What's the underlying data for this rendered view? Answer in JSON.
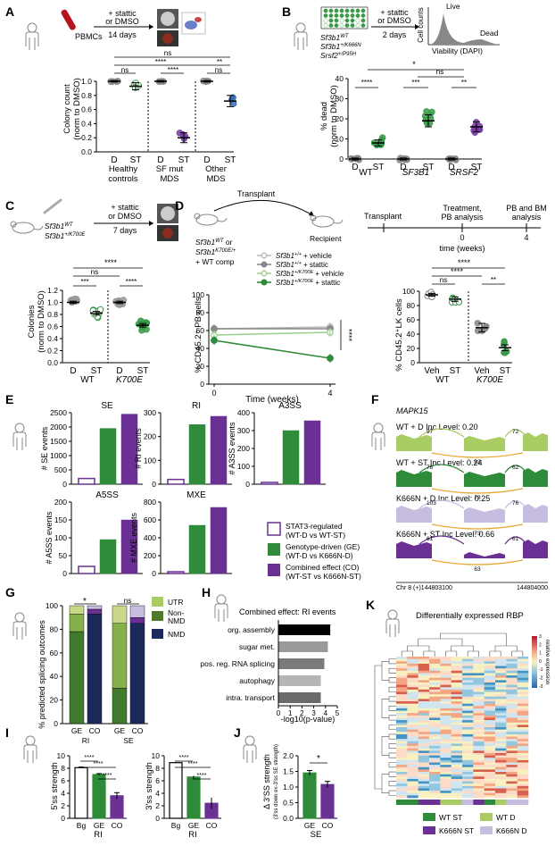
{
  "panels": {
    "A": {
      "letter": "A",
      "pbmcs": "PBMCs",
      "treat": "+ stattic",
      "treat2": "or DMSO",
      "duration": "14 days",
      "ylabel1": "Colony count",
      "ylabel2": "(norm to DMSO)",
      "groups": [
        "Healthy",
        "controls",
        "SF mut",
        "MDS",
        "Other",
        "MDS"
      ],
      "ticks": [
        "D",
        "ST",
        "D",
        "ST",
        "D",
        "ST"
      ],
      "sig": [
        "ns",
        "****",
        "****",
        "**",
        "ns",
        "ns"
      ]
    },
    "B": {
      "letter": "B",
      "geno1": "Sf3b1",
      "geno1sup": "WT",
      "geno2": "Sf3b1",
      "geno2sup": "+/K666N",
      "geno3": "Srsf2",
      "geno3sup": "+/P95H",
      "treat": "+ stattic",
      "treat2": "or DMSO",
      "duration": "2 days",
      "cellcounts": "Cell counts",
      "live": "Live",
      "dead": "Dead",
      "viab": "Viability (DAPI)",
      "ylabel1": "% dead",
      "ylabel2": "(norm to DMSO)",
      "groups": [
        "WT",
        "SF3B1",
        "SRSF2"
      ],
      "ticks": [
        "D",
        "ST",
        "D",
        "ST",
        "D",
        "ST"
      ],
      "sig": [
        "****",
        "***",
        "**",
        "*",
        "ns"
      ]
    },
    "C": {
      "letter": "C",
      "geno1": "Sf3b1",
      "geno1sup": "WT",
      "geno2": "Sf3b1",
      "geno2sup": "+/K700E",
      "treat": "+ stattic",
      "treat2": "or DMSO",
      "duration": "7 days",
      "ylabel1": "Colonies",
      "ylabel2": "(norm to DMSO)",
      "groups": [
        "WT",
        "K700E"
      ],
      "ticks": [
        "D",
        "ST",
        "D",
        "ST"
      ],
      "sig": [
        "***",
        "****",
        "ns",
        "****"
      ]
    },
    "D": {
      "letter": "D",
      "transplant": "Transplant",
      "recipient": "Recipient",
      "donor1": "Sf3b1",
      "donor1sup": "WT",
      "donor1b": " or",
      "donor2": "Sf3b1",
      "donor2sup": "K700E/+",
      "donor3": "+ WT comp",
      "ylabel": "% CD45.2⁺ PB cells",
      "xlabel": "Time (weeks)",
      "sig": "****",
      "tl_transplant": "Transplant",
      "tl_treat1": "Treatment,",
      "tl_treat2": "PB analysis",
      "tl_pb1": "PB and BM",
      "tl_pb2": "analysis",
      "tl_xlabel": "time (weeks)",
      "ylabel2": "% CD45.2⁺LK cells",
      "ticks2": [
        "Veh",
        "ST",
        "Veh",
        "ST"
      ],
      "groups2": [
        "WT",
        "K700E"
      ],
      "sig2": [
        "ns",
        "****",
        "****",
        "**"
      ]
    },
    "E": {
      "letter": "E",
      "legend": [
        {
          "line1": "STAT3-regulated",
          "line2": "(WT-D vs WT-ST)"
        },
        {
          "line1": "Genotype-driven (GE)",
          "line2": "(WT-D vs K666N-D)"
        },
        {
          "line1": "Combined effect (CO)",
          "line2": "(WT-ST vs K666N-ST)"
        }
      ]
    },
    "F": {
      "letter": "F",
      "gene": "MAPK15",
      "tracks": [
        {
          "label": "WT + D",
          "inc": "Inc Level: 0.20",
          "j1": "97",
          "j2": "72",
          "j3": "83"
        },
        {
          "label": "WT + ST",
          "inc": "Inc Level: 0.24",
          "j1": "76",
          "j2": "62",
          "j3": "78"
        },
        {
          "label": "K666N + D",
          "inc": "Inc Level: 0.25",
          "j1": "103",
          "j2": "76",
          "j3": "73"
        },
        {
          "label": "K666N + ST",
          "inc": "Inc Level: 0.66",
          "j1": "61",
          "j2": "61",
          "j3": "63"
        }
      ],
      "coord1": "Chr 8 (+)144803100",
      "coord2": "144804000"
    },
    "G": {
      "letter": "G",
      "ylabel": "% predicted splicing outcomes",
      "sig": [
        "*",
        "ns"
      ],
      "legend": [
        "UTR",
        "Non-NMD",
        "NMD"
      ],
      "legend2": [
        "",
        "Non-",
        "NMD"
      ],
      "xgroups": [
        "RI",
        "SE"
      ]
    },
    "H": {
      "letter": "H",
      "title": "Combined effect: RI events",
      "xlabel": "-log10(p-value)"
    },
    "I": {
      "letter": "I",
      "ylabel1": "5'ss strength",
      "ylabel2": "3'ss strength",
      "sig": "****",
      "group": "RI"
    },
    "J": {
      "letter": "J",
      "ylabel1": "Δ 3'SS strength",
      "ylabel2": "(3'ss down ex-3'ss SE strength)",
      "sig": "*",
      "group": "SE"
    },
    "K": {
      "letter": "K",
      "title": "Differentially expressed RBP",
      "scale_label": "relative expression",
      "legend": [
        "WT ST",
        "WT D",
        "K666N ST",
        "K666N D"
      ]
    }
  },
  "colors": {
    "green": "#2e8b3a",
    "lightgreen": "#a9cc63",
    "purple": "#6a3093",
    "lightpurple": "#c6bde0",
    "grey": "#999999",
    "navy": "#1b2a5a"
  },
  "chart_data": [
    {
      "type": "scatter",
      "panel": "A",
      "categories": [
        "Healthy controls D",
        "Healthy controls ST",
        "SF mut MDS D",
        "SF mut MDS ST",
        "Other MDS D",
        "Other MDS ST"
      ],
      "values": [
        1.0,
        0.93,
        1.0,
        0.2,
        1.0,
        0.72
      ],
      "ylim": [
        0,
        1.0
      ],
      "yticks": [
        "0.0",
        "0.2",
        "0.4",
        "0.6",
        "0.8",
        "1.0"
      ]
    },
    {
      "type": "scatter",
      "panel": "B",
      "categories": [
        "WT D",
        "WT ST",
        "SF3B1 D",
        "SF3B1 ST",
        "SRSF2 D",
        "SRSF2 ST"
      ],
      "values": [
        0,
        8,
        0,
        19,
        0,
        16
      ],
      "ylim": [
        0,
        40
      ],
      "yticks": [
        "0",
        "10",
        "20",
        "30",
        "40"
      ]
    },
    {
      "type": "scatter",
      "panel": "C",
      "categories": [
        "WT D",
        "WT ST",
        "K700E D",
        "K700E ST"
      ],
      "values": [
        1.0,
        0.82,
        1.0,
        0.62
      ],
      "ylim": [
        0,
        1.2
      ],
      "yticks": [
        "0.0",
        "0.2",
        "0.4",
        "0.6",
        "0.8",
        "1.0",
        "1.2"
      ]
    },
    {
      "type": "line",
      "panel": "D",
      "x": [
        0,
        4
      ],
      "series": [
        {
          "name": "Sf3b1+/+ + vehicle",
          "values": [
            62,
            64
          ]
        },
        {
          "name": "Sf3b1+/+ + stattic",
          "values": [
            62,
            62
          ]
        },
        {
          "name": "Sf3b1+/K700E + vehicle",
          "values": [
            55,
            58
          ]
        },
        {
          "name": "Sf3b1+/K700E + stattic",
          "values": [
            49,
            29
          ]
        }
      ],
      "ylim": [
        0,
        100
      ],
      "yticks": [
        "0",
        "20",
        "40",
        "60",
        "80",
        "100"
      ],
      "xticks": [
        "0",
        "4"
      ]
    },
    {
      "type": "scatter",
      "panel": "D2",
      "categories": [
        "WT Veh",
        "WT ST",
        "K700E Veh",
        "K700E ST"
      ],
      "values": [
        95,
        89,
        49,
        21
      ],
      "ylim": [
        0,
        100
      ],
      "yticks": [
        "0",
        "20",
        "40",
        "60",
        "80",
        "100"
      ]
    },
    {
      "type": "bar",
      "panel": "E-SE",
      "title": "SE",
      "ylabel": "# SE events",
      "categories": [
        "STAT3-regulated",
        "Genotype-driven",
        "Combined effect"
      ],
      "values": [
        200,
        1950,
        2450
      ],
      "ylim": [
        0,
        2500
      ],
      "yticks": [
        "0",
        "500",
        "1000",
        "1500",
        "2000",
        "2500"
      ]
    },
    {
      "type": "bar",
      "panel": "E-RI",
      "title": "RI",
      "ylabel": "# RI events",
      "categories": [
        "STAT3-regulated",
        "Genotype-driven",
        "Combined effect"
      ],
      "values": [
        20,
        250,
        285
      ],
      "ylim": [
        0,
        300
      ],
      "yticks": [
        "0",
        "100",
        "200",
        "300"
      ]
    },
    {
      "type": "bar",
      "panel": "E-A3SS",
      "title": "A3SS",
      "ylabel": "# A3SS events",
      "categories": [
        "STAT3-regulated",
        "Genotype-driven",
        "Combined effect"
      ],
      "values": [
        10,
        300,
        355
      ],
      "ylim": [
        0,
        400
      ],
      "yticks": [
        "0",
        "100",
        "200",
        "300",
        "400"
      ]
    },
    {
      "type": "bar",
      "panel": "E-A5SS",
      "title": "A5SS",
      "ylabel": "# A5SS events",
      "categories": [
        "STAT3-regulated",
        "Genotype-driven",
        "Combined effect"
      ],
      "values": [
        20,
        95,
        150
      ],
      "ylim": [
        0,
        200
      ],
      "yticks": [
        "0",
        "50",
        "100",
        "150",
        "200"
      ]
    },
    {
      "type": "bar",
      "panel": "E-MXE",
      "title": "MXE",
      "ylabel": "# MXE events",
      "categories": [
        "STAT3-regulated",
        "Genotype-driven",
        "Combined effect"
      ],
      "values": [
        20,
        540,
        740
      ],
      "ylim": [
        0,
        800
      ],
      "yticks": [
        "0",
        "200",
        "400",
        "600",
        "800"
      ]
    },
    {
      "type": "bar",
      "panel": "G",
      "categories": [
        "GE",
        "CO",
        "GE",
        "CO"
      ],
      "series": [
        {
          "name": "NMD",
          "values": [
            78,
            93,
            30,
            85
          ]
        },
        {
          "name": "Non-NMD",
          "values": [
            15,
            4,
            55,
            5
          ]
        },
        {
          "name": "UTR",
          "values": [
            7,
            3,
            15,
            10
          ]
        }
      ],
      "ylim": [
        0,
        100
      ],
      "yticks": [
        "0",
        "20",
        "40",
        "60",
        "80",
        "100"
      ]
    },
    {
      "type": "bar",
      "panel": "H",
      "categories": [
        "org. assembly",
        "sugar met.",
        "pos. reg. RNA splicing",
        "autophagy",
        "intra. transport"
      ],
      "values": [
        4.4,
        4.2,
        3.9,
        3.6,
        3.6
      ],
      "xlim": [
        0,
        5
      ],
      "xticks": [
        "0",
        "1",
        "2",
        "3",
        "4",
        "5"
      ]
    },
    {
      "type": "bar",
      "panel": "I-5ss",
      "categories": [
        "Bg",
        "GE",
        "CO"
      ],
      "values": [
        8.1,
        7.0,
        3.6
      ],
      "ylim": [
        0,
        10
      ],
      "yticks": [
        "0",
        "2",
        "4",
        "6",
        "8",
        "10"
      ]
    },
    {
      "type": "bar",
      "panel": "I-3ss",
      "categories": [
        "Bg",
        "GE",
        "CO"
      ],
      "values": [
        8.9,
        6.6,
        2.4
      ],
      "ylim": [
        0,
        10
      ],
      "yticks": [
        "0",
        "2",
        "4",
        "6",
        "8",
        "10"
      ]
    },
    {
      "type": "bar",
      "panel": "J",
      "categories": [
        "GE",
        "CO"
      ],
      "values": [
        1.45,
        1.08
      ],
      "ylim": [
        0,
        2.0
      ],
      "yticks": [
        "0.0",
        "0.5",
        "1.0",
        "1.5",
        "2.0"
      ]
    },
    {
      "type": "heatmap",
      "panel": "K",
      "ylim": [
        -3,
        3
      ],
      "yticks": [
        "3",
        "2",
        "1",
        "0",
        "-1",
        "-2",
        "-3"
      ]
    }
  ]
}
